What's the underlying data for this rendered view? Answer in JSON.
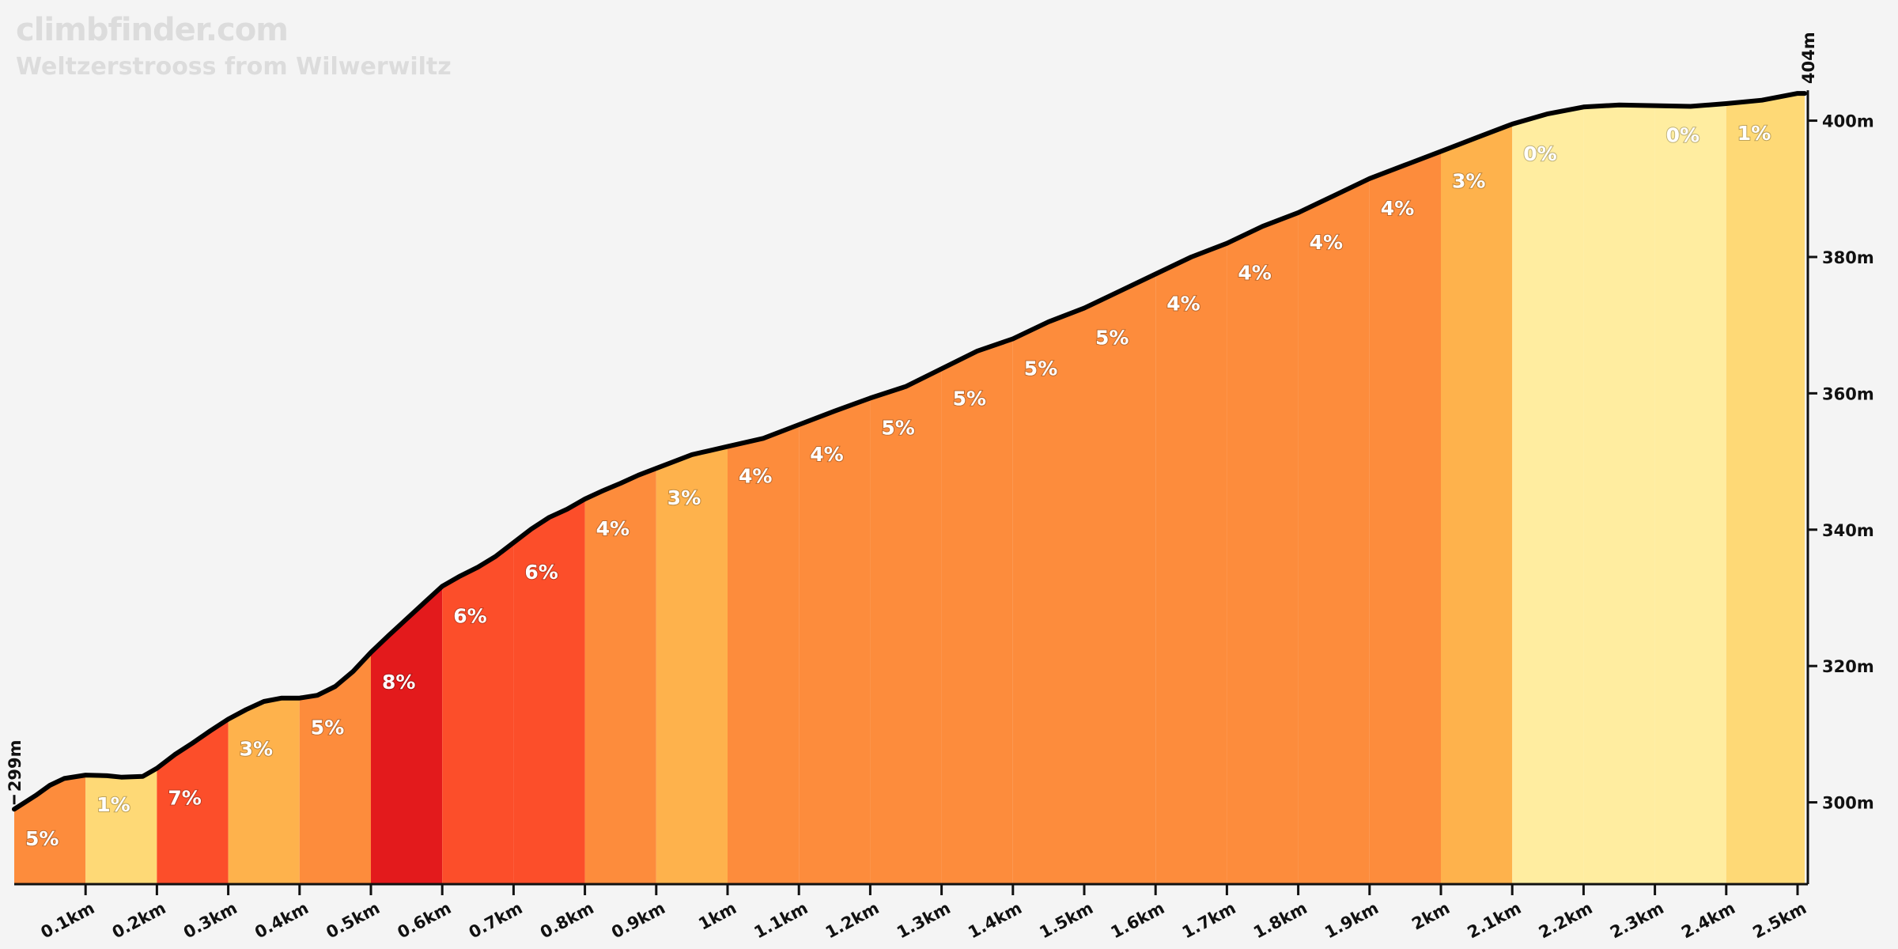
{
  "header": {
    "site": "climbfinder.com",
    "climb_name": "Weltzerstrooss from Wilwerwiltz"
  },
  "chart_data": {
    "type": "area",
    "xlabel": "",
    "ylabel": "",
    "x_unit": "km",
    "y_unit": "m",
    "xlim": [
      0,
      2.52
    ],
    "ylim": [
      288,
      404
    ],
    "start_elevation_label": "299m",
    "end_elevation_label": "404m",
    "x_tick_labels": [
      {
        "x": 0.1,
        "label": "0.1km"
      },
      {
        "x": 0.2,
        "label": "0.2km"
      },
      {
        "x": 0.3,
        "label": "0.3km"
      },
      {
        "x": 0.4,
        "label": "0.4km"
      },
      {
        "x": 0.5,
        "label": "0.5km"
      },
      {
        "x": 0.6,
        "label": "0.6km"
      },
      {
        "x": 0.7,
        "label": "0.7km"
      },
      {
        "x": 0.8,
        "label": "0.8km"
      },
      {
        "x": 0.9,
        "label": "0.9km"
      },
      {
        "x": 1.0,
        "label": "1km"
      },
      {
        "x": 1.1,
        "label": "1.1km"
      },
      {
        "x": 1.2,
        "label": "1.2km"
      },
      {
        "x": 1.3,
        "label": "1.3km"
      },
      {
        "x": 1.4,
        "label": "1.4km"
      },
      {
        "x": 1.5,
        "label": "1.5km"
      },
      {
        "x": 1.6,
        "label": "1.6km"
      },
      {
        "x": 1.7,
        "label": "1.7km"
      },
      {
        "x": 1.8,
        "label": "1.8km"
      },
      {
        "x": 1.9,
        "label": "1.9km"
      },
      {
        "x": 2.0,
        "label": "2km"
      },
      {
        "x": 2.1,
        "label": "2.1km"
      },
      {
        "x": 2.2,
        "label": "2.2km"
      },
      {
        "x": 2.3,
        "label": "2.3km"
      },
      {
        "x": 2.4,
        "label": "2.4km"
      },
      {
        "x": 2.5,
        "label": "2.5km"
      }
    ],
    "y_tick_labels": [
      {
        "y": 300,
        "label": "300m"
      },
      {
        "y": 320,
        "label": "320m"
      },
      {
        "y": 340,
        "label": "340m"
      },
      {
        "y": 360,
        "label": "360m"
      },
      {
        "y": 380,
        "label": "380m"
      },
      {
        "y": 400,
        "label": "400m"
      }
    ],
    "segments": [
      {
        "start": 0.0,
        "end": 0.1,
        "grade": 5,
        "label": "5%",
        "color": "#fd8c3c"
      },
      {
        "start": 0.1,
        "end": 0.2,
        "grade": 1,
        "label": "1%",
        "color": "#fed976"
      },
      {
        "start": 0.2,
        "end": 0.3,
        "grade": 7,
        "label": "7%",
        "color": "#fc4e2a"
      },
      {
        "start": 0.3,
        "end": 0.4,
        "grade": 3,
        "label": "3%",
        "color": "#feb24c"
      },
      {
        "start": 0.4,
        "end": 0.5,
        "grade": 5,
        "label": "5%",
        "color": "#fd8c3c"
      },
      {
        "start": 0.5,
        "end": 0.6,
        "grade": 8,
        "label": "8%",
        "color": "#e31a1c"
      },
      {
        "start": 0.6,
        "end": 0.7,
        "grade": 6,
        "label": "6%",
        "color": "#fc4e2a"
      },
      {
        "start": 0.7,
        "end": 0.8,
        "grade": 6,
        "label": "6%",
        "color": "#fc4e2a"
      },
      {
        "start": 0.8,
        "end": 0.9,
        "grade": 4,
        "label": "4%",
        "color": "#fd8c3c"
      },
      {
        "start": 0.9,
        "end": 1.0,
        "grade": 3,
        "label": "3%",
        "color": "#feb24c"
      },
      {
        "start": 1.0,
        "end": 1.1,
        "grade": 4,
        "label": "4%",
        "color": "#fd8c3c"
      },
      {
        "start": 1.1,
        "end": 1.2,
        "grade": 4,
        "label": "4%",
        "color": "#fd8c3c"
      },
      {
        "start": 1.2,
        "end": 1.3,
        "grade": 5,
        "label": "5%",
        "color": "#fd8c3c"
      },
      {
        "start": 1.3,
        "end": 1.4,
        "grade": 5,
        "label": "5%",
        "color": "#fd8c3c"
      },
      {
        "start": 1.4,
        "end": 1.5,
        "grade": 5,
        "label": "5%",
        "color": "#fd8c3c"
      },
      {
        "start": 1.5,
        "end": 1.6,
        "grade": 5,
        "label": "5%",
        "color": "#fd8c3c"
      },
      {
        "start": 1.6,
        "end": 1.7,
        "grade": 4,
        "label": "4%",
        "color": "#fd8c3c"
      },
      {
        "start": 1.7,
        "end": 1.8,
        "grade": 4,
        "label": "4%",
        "color": "#fd8c3c"
      },
      {
        "start": 1.8,
        "end": 1.9,
        "grade": 4,
        "label": "4%",
        "color": "#fd8c3c"
      },
      {
        "start": 1.9,
        "end": 2.0,
        "grade": 4,
        "label": "4%",
        "color": "#fd8c3c"
      },
      {
        "start": 2.0,
        "end": 2.1,
        "grade": 3,
        "label": "3%",
        "color": "#feb24c"
      },
      {
        "start": 2.1,
        "end": 2.2,
        "grade": 0,
        "label": "0%",
        "color": "#ffeda0"
      },
      {
        "start": 2.2,
        "end": 2.3,
        "grade": 0,
        "label": "",
        "color": "#ffeda0"
      },
      {
        "start": 2.3,
        "end": 2.4,
        "grade": 0,
        "label": "0%",
        "color": "#ffeda0"
      },
      {
        "start": 2.4,
        "end": 2.51,
        "grade": 1,
        "label": "1%",
        "color": "#fed976"
      }
    ],
    "profile": [
      [
        0.0,
        299
      ],
      [
        0.03,
        301
      ],
      [
        0.05,
        302.5
      ],
      [
        0.07,
        303.5
      ],
      [
        0.1,
        304
      ],
      [
        0.13,
        303.9
      ],
      [
        0.15,
        303.7
      ],
      [
        0.18,
        303.8
      ],
      [
        0.2,
        305
      ],
      [
        0.225,
        307
      ],
      [
        0.25,
        308.7
      ],
      [
        0.275,
        310.5
      ],
      [
        0.3,
        312.2
      ],
      [
        0.325,
        313.6
      ],
      [
        0.35,
        314.8
      ],
      [
        0.375,
        315.3
      ],
      [
        0.4,
        315.3
      ],
      [
        0.425,
        315.7
      ],
      [
        0.45,
        317
      ],
      [
        0.475,
        319.2
      ],
      [
        0.5,
        322
      ],
      [
        0.525,
        324.5
      ],
      [
        0.55,
        326.9
      ],
      [
        0.575,
        329.3
      ],
      [
        0.6,
        331.7
      ],
      [
        0.625,
        333.2
      ],
      [
        0.65,
        334.5
      ],
      [
        0.675,
        336.1
      ],
      [
        0.7,
        338.1
      ],
      [
        0.725,
        340.1
      ],
      [
        0.75,
        341.8
      ],
      [
        0.775,
        343
      ],
      [
        0.8,
        344.5
      ],
      [
        0.825,
        345.7
      ],
      [
        0.85,
        346.8
      ],
      [
        0.875,
        348
      ],
      [
        0.9,
        349
      ],
      [
        0.925,
        350
      ],
      [
        0.95,
        351
      ],
      [
        0.975,
        351.6
      ],
      [
        1.0,
        352.2
      ],
      [
        1.05,
        353.4
      ],
      [
        1.1,
        355.4
      ],
      [
        1.15,
        357.4
      ],
      [
        1.2,
        359.3
      ],
      [
        1.25,
        361
      ],
      [
        1.3,
        363.6
      ],
      [
        1.35,
        366.2
      ],
      [
        1.4,
        368
      ],
      [
        1.45,
        370.5
      ],
      [
        1.5,
        372.5
      ],
      [
        1.55,
        375
      ],
      [
        1.6,
        377.5
      ],
      [
        1.65,
        380
      ],
      [
        1.7,
        382
      ],
      [
        1.75,
        384.5
      ],
      [
        1.8,
        386.5
      ],
      [
        1.85,
        389
      ],
      [
        1.9,
        391.5
      ],
      [
        1.95,
        393.5
      ],
      [
        2.0,
        395.5
      ],
      [
        2.05,
        397.5
      ],
      [
        2.1,
        399.5
      ],
      [
        2.15,
        401
      ],
      [
        2.2,
        402
      ],
      [
        2.25,
        402.3
      ],
      [
        2.3,
        402.2
      ],
      [
        2.35,
        402.1
      ],
      [
        2.4,
        402.5
      ],
      [
        2.45,
        403
      ],
      [
        2.5,
        404
      ],
      [
        2.51,
        404
      ]
    ]
  }
}
